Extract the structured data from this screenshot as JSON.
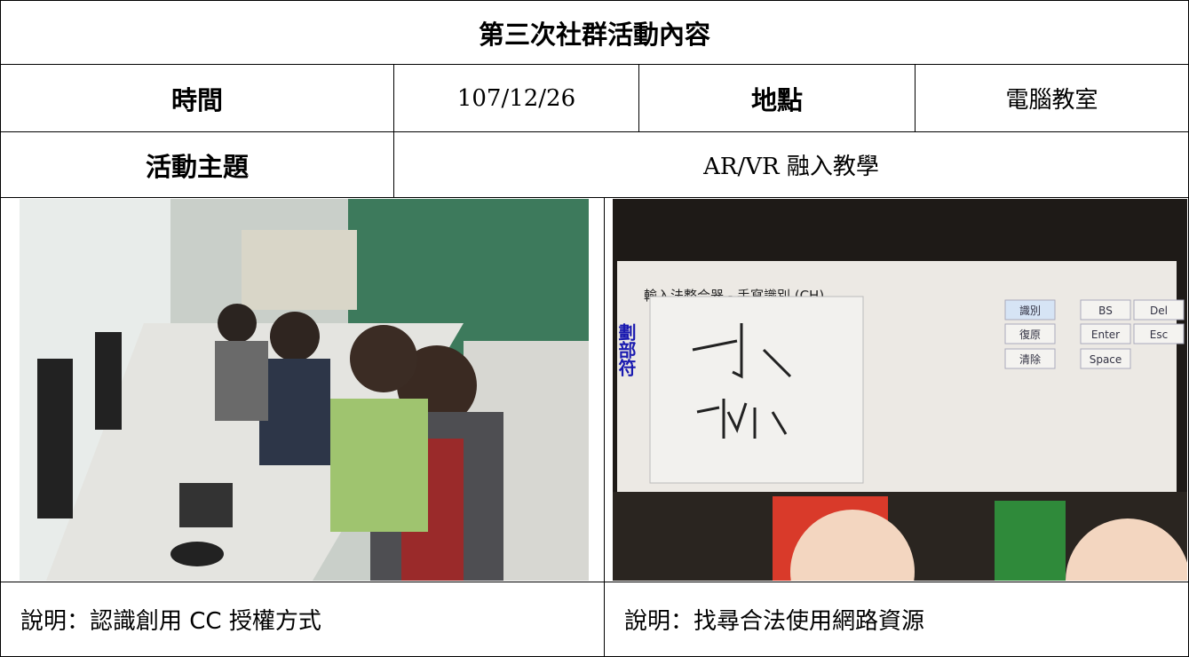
{
  "title": "第三次社群活動內容",
  "table": {
    "rows": [
      [
        "時間",
        "107/12/26",
        "地點",
        "電腦教室"
      ],
      [
        "活動主題",
        "AR/VR 融入教學"
      ]
    ]
  },
  "photos": [
    {
      "caption": "說明：認識創用 CC 授權方式"
    },
    {
      "caption": "說明：找尋合法使用網路資源",
      "screen": {
        "window_title": "輸入法整合器 - 手寫識別 (CH)",
        "side_label": "劃部符",
        "buttons": [
          "識別",
          "復原",
          "清除",
          "BS",
          "Del",
          "Enter",
          "Esc",
          "Space"
        ]
      }
    }
  ]
}
